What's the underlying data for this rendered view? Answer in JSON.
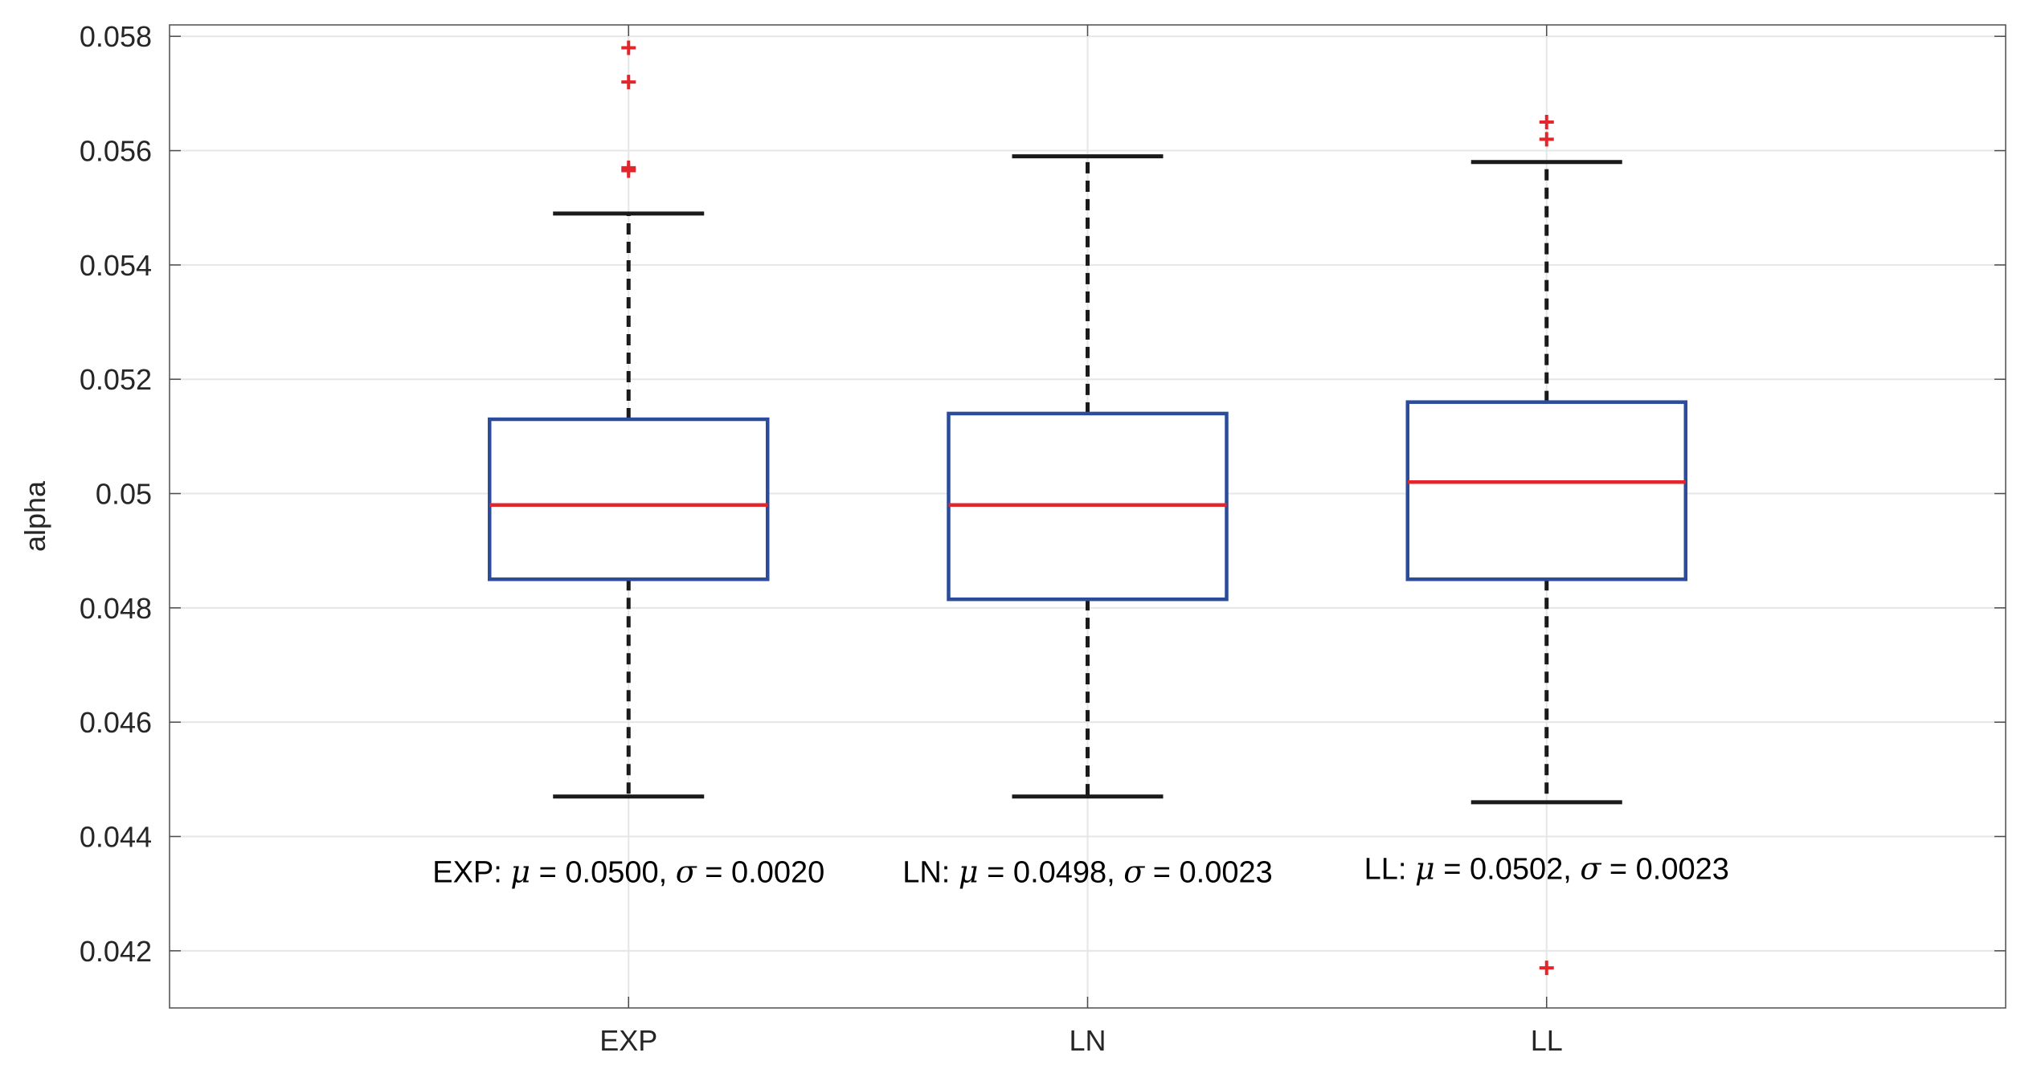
{
  "chart_data": {
    "type": "box",
    "ylabel": "alpha",
    "xlabel": "",
    "title": "",
    "ylim": [
      0.041,
      0.0582
    ],
    "grid": true,
    "yticks": [
      0.042,
      0.044,
      0.046,
      0.048,
      0.05,
      0.052,
      0.054,
      0.056,
      0.058
    ],
    "ytick_labels": [
      "0.042",
      "0.044",
      "0.046",
      "0.048",
      "0.05",
      "0.052",
      "0.054",
      "0.056",
      "0.058"
    ],
    "categories": [
      "EXP",
      "LN",
      "LL"
    ],
    "boxes": [
      {
        "category": "EXP",
        "whisker_low": 0.0447,
        "q1": 0.0485,
        "median": 0.0498,
        "q3": 0.0513,
        "whisker_high": 0.0549,
        "outliers": [
          0.0578,
          0.0572,
          0.05565,
          0.0557
        ],
        "stat_prefix": "EXP:",
        "mu_text": "= 0.0500,",
        "sigma_text": "= 0.0020"
      },
      {
        "category": "LN",
        "whisker_low": 0.0447,
        "q1": 0.04815,
        "median": 0.0498,
        "q3": 0.0514,
        "whisker_high": 0.0559,
        "outliers": [],
        "stat_prefix": "LN:",
        "mu_text": "= 0.0498,",
        "sigma_text": "= 0.0023"
      },
      {
        "category": "LL",
        "whisker_low": 0.0446,
        "q1": 0.0485,
        "median": 0.0502,
        "q3": 0.0516,
        "whisker_high": 0.0558,
        "outliers": [
          0.0565,
          0.0562,
          0.0417
        ],
        "stat_prefix": "LL:",
        "mu_text": "= 0.0502,",
        "sigma_text": "= 0.0023"
      }
    ],
    "colors": {
      "box": "#2b4b9b",
      "median": "#e3262b",
      "whisker": "#1a1a1a",
      "outlier": "#e3262b",
      "grid": "#e6e6e6",
      "axis": "#4d4d4d"
    }
  }
}
